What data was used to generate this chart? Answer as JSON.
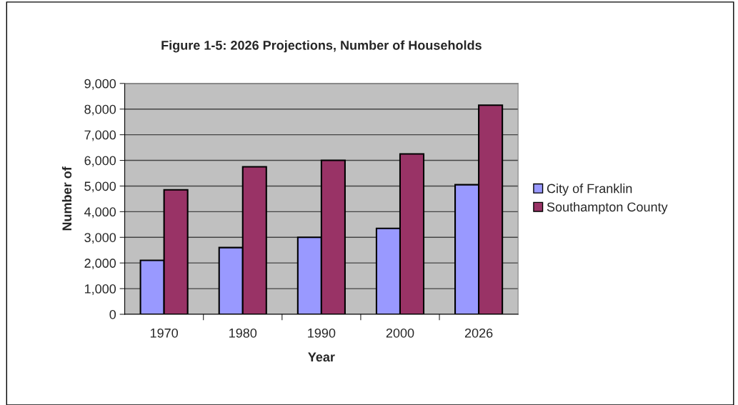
{
  "chart_data": {
    "type": "bar",
    "title": "Figure 1-5: 2026 Projections, Number of Households",
    "xlabel": "Year",
    "ylabel": "Number of",
    "categories": [
      "1970",
      "1980",
      "1990",
      "2000",
      "2026"
    ],
    "series": [
      {
        "name": "City of Franklin",
        "color": "#9999ff",
        "values": [
          2100,
          2600,
          3000,
          3350,
          5050
        ]
      },
      {
        "name": "Southampton County",
        "color": "#993366",
        "values": [
          4850,
          5750,
          6000,
          6250,
          8150
        ]
      }
    ],
    "ylim": [
      0,
      9000
    ],
    "yticks": [
      {
        "value": 0,
        "label": "0"
      },
      {
        "value": 1000,
        "label": "1,000"
      },
      {
        "value": 2000,
        "label": "2,000"
      },
      {
        "value": 3000,
        "label": "3,000"
      },
      {
        "value": 4000,
        "label": "4,000"
      },
      {
        "value": 5000,
        "label": "5,000"
      },
      {
        "value": 6000,
        "label": "6,000"
      },
      {
        "value": 7000,
        "label": "7,000"
      },
      {
        "value": 8000,
        "label": "8,000"
      },
      {
        "value": 9000,
        "label": "9,000"
      }
    ],
    "grid": "y",
    "legend": "right"
  }
}
